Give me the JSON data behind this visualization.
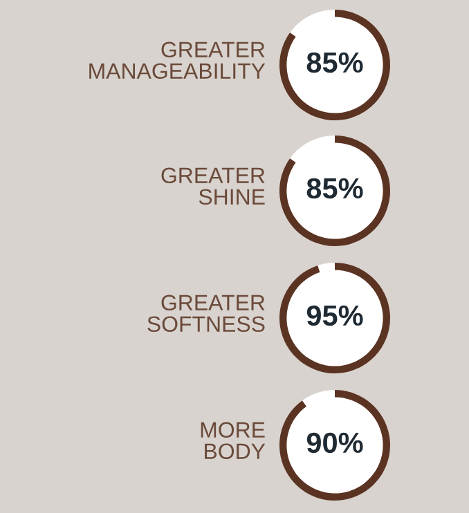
{
  "chart_data": [
    {
      "type": "donut",
      "title": "GREATER\nMANAGEABILITY",
      "categories": [
        null,
        null
      ],
      "values": [
        85,
        15
      ],
      "colors": [
        "#5b3322",
        "#ffffff"
      ],
      "value_labels": [
        "85%",
        null
      ]
    },
    {
      "type": "donut",
      "title": "GREATER\nSHINE",
      "categories": [
        null,
        null
      ],
      "values": [
        85,
        15
      ],
      "colors": [
        "#5b3322",
        "#ffffff"
      ],
      "value_labels": [
        "85%",
        null
      ]
    },
    {
      "type": "donut",
      "title": "GREATER\nSOFTNESS",
      "categories": [
        null,
        null
      ],
      "values": [
        95,
        5
      ],
      "colors": [
        "#5b3322",
        "#ffffff"
      ],
      "value_labels": [
        "95%",
        null
      ]
    },
    {
      "type": "donut",
      "title": "MORE\nBODY",
      "categories": [
        null,
        null
      ],
      "values": [
        90,
        10
      ],
      "colors": [
        "#5b3322",
        "#ffffff"
      ],
      "value_labels": [
        "90%",
        null
      ]
    }
  ]
}
